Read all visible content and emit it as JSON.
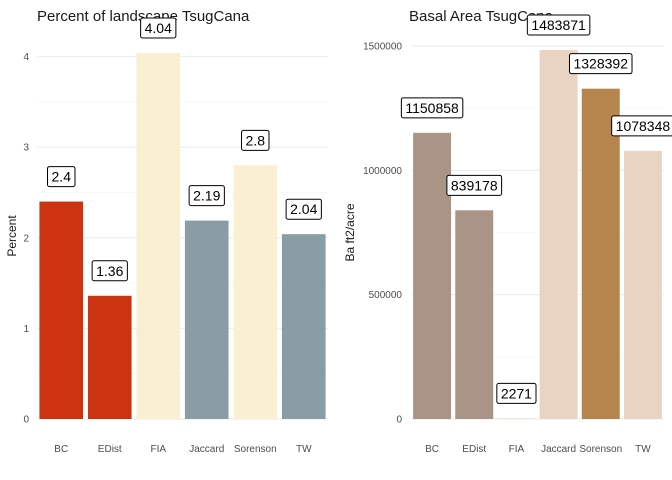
{
  "chart_data": [
    {
      "type": "bar",
      "title": "Percent of landscape  TsugCana",
      "xlabel": "",
      "ylabel": "Percent",
      "categories": [
        "BC",
        "EDist",
        "FIA",
        "Jaccard",
        "Sorenson",
        "TW"
      ],
      "values": [
        2.4,
        1.36,
        4.04,
        2.19,
        2.8,
        2.04
      ],
      "data_labels": [
        "2.4",
        "1.36",
        "4.04",
        "2.19",
        "2.8",
        "2.04"
      ],
      "colors": [
        "#CC3311",
        "#CC3311",
        "#FAEFD1",
        "#8A9DA4",
        "#FAEFD1",
        "#8A9DA4"
      ],
      "yticks": [
        0,
        1,
        2,
        3,
        4
      ],
      "ytick_labels": [
        "0",
        "1",
        "2",
        "3",
        "4"
      ],
      "ylim": [
        0,
        4.04
      ],
      "grid": true,
      "legend": "none"
    },
    {
      "type": "bar",
      "title": "Basal Area  TsugCana",
      "xlabel": "",
      "ylabel": "Ba ft2/acre",
      "categories": [
        "BC",
        "EDist",
        "FIA",
        "Jaccard",
        "Sorenson",
        "TW"
      ],
      "values": [
        1150858,
        839178,
        2271,
        1483871,
        1328392,
        1078348
      ],
      "data_labels": [
        "1150858",
        "839178",
        "2271",
        "1483871",
        "1328392",
        "1078348"
      ],
      "colors": [
        "#AA9486",
        "#AA9486",
        "#E9D3C2",
        "#E9D3C2",
        "#B6854D",
        "#E9D3C2"
      ],
      "yticks": [
        0,
        500000,
        1000000,
        1500000
      ],
      "ytick_labels": [
        "0",
        "500000",
        "1000000",
        "1500000"
      ],
      "ylim": [
        0,
        1500000
      ],
      "grid": true,
      "legend": "none"
    }
  ]
}
